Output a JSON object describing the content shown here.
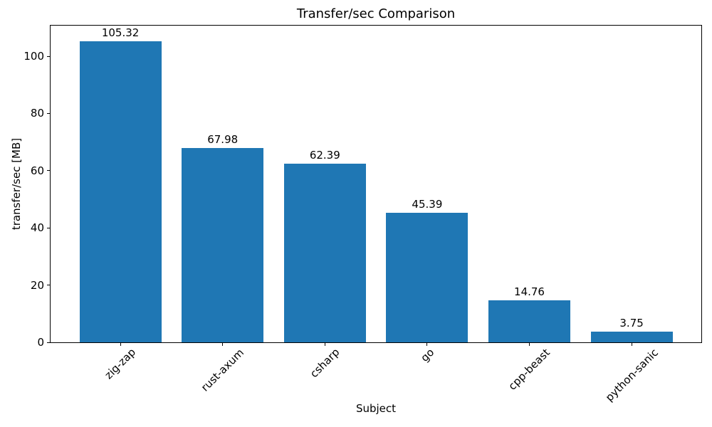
{
  "chart_data": {
    "type": "bar",
    "title": "Transfer/sec Comparison",
    "xlabel": "Subject",
    "ylabel": "transfer/sec [MB]",
    "categories": [
      "zig-zap",
      "rust-axum",
      "csharp",
      "go",
      "cpp-beast",
      "python-sanic"
    ],
    "values": [
      105.32,
      67.98,
      62.39,
      45.39,
      14.76,
      3.75
    ],
    "bar_labels": [
      "105.32",
      "67.98",
      "62.39",
      "45.39",
      "14.76",
      "3.75"
    ],
    "yticks": [
      0,
      20,
      40,
      60,
      80,
      100
    ],
    "ylim": [
      0,
      111.2
    ],
    "x_tick_rotation_deg": 45,
    "grid": false,
    "legend": null,
    "bar_color": "#1f77b4",
    "text_color": "#000000",
    "spine_color": "#000000"
  }
}
